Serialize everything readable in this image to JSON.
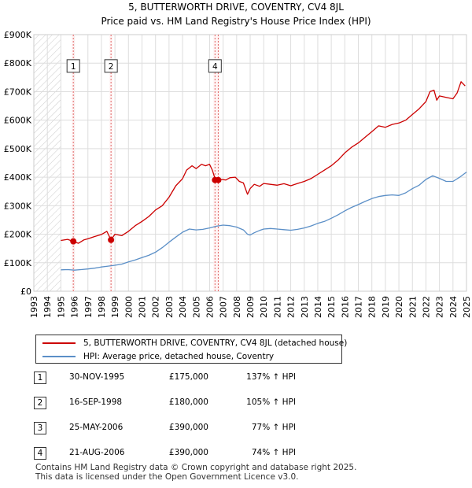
{
  "chart_data": {
    "type": "line",
    "title": "5, BUTTERWORTH DRIVE, COVENTRY, CV4 8JL",
    "subtitle": "Price paid vs. HM Land Registry's House Price Index (HPI)",
    "xlabel": "",
    "ylabel": "",
    "xlim": [
      1993,
      2025
    ],
    "ylim": [
      0,
      900000
    ],
    "grid": true,
    "hatched_periods": [
      [
        1993,
        1995
      ]
    ],
    "x_ticks": [
      "1993",
      "1994",
      "1995",
      "1996",
      "1997",
      "1998",
      "1999",
      "2000",
      "2001",
      "2002",
      "2003",
      "2004",
      "2005",
      "2006",
      "2007",
      "2008",
      "2009",
      "2010",
      "2011",
      "2012",
      "2013",
      "2014",
      "2015",
      "2016",
      "2017",
      "2018",
      "2019",
      "2020",
      "2021",
      "2022",
      "2023",
      "2024",
      "2025"
    ],
    "y_ticks": [
      {
        "value": 0,
        "label": "£0"
      },
      {
        "value": 100000,
        "label": "£100K"
      },
      {
        "value": 200000,
        "label": "£200K"
      },
      {
        "value": 300000,
        "label": "£300K"
      },
      {
        "value": 400000,
        "label": "£400K"
      },
      {
        "value": 500000,
        "label": "£500K"
      },
      {
        "value": 600000,
        "label": "£600K"
      },
      {
        "value": 700000,
        "label": "£700K"
      },
      {
        "value": 800000,
        "label": "£800K"
      },
      {
        "value": 900000,
        "label": "£900K"
      }
    ],
    "series": [
      {
        "name": "5, BUTTERWORTH DRIVE, COVENTRY, CV4 8JL (detached house)",
        "color": "#cc0000",
        "x": [
          1995.0,
          1995.5,
          1995.9,
          1996.3,
          1996.7,
          1997.0,
          1997.5,
          1998.0,
          1998.4,
          1998.71,
          1999.0,
          1999.5,
          2000.0,
          2000.5,
          2001.0,
          2001.5,
          2002.0,
          2002.5,
          2003.0,
          2003.5,
          2004.0,
          2004.3,
          2004.7,
          2005.0,
          2005.4,
          2005.7,
          2006.0,
          2006.2,
          2006.4,
          2006.64,
          2006.9,
          2007.2,
          2007.5,
          2007.9,
          2008.2,
          2008.5,
          2008.8,
          2009.0,
          2009.3,
          2009.7,
          2010.0,
          2010.5,
          2011.0,
          2011.5,
          2012.0,
          2012.5,
          2013.0,
          2013.5,
          2014.0,
          2014.5,
          2015.0,
          2015.5,
          2016.0,
          2016.5,
          2017.0,
          2017.5,
          2018.0,
          2018.5,
          2019.0,
          2019.5,
          2020.0,
          2020.5,
          2021.0,
          2021.5,
          2022.0,
          2022.3,
          2022.6,
          2022.8,
          2023.0,
          2023.5,
          2024.0,
          2024.3,
          2024.6,
          2024.9
        ],
        "values": [
          178000,
          182000,
          175000,
          168000,
          180000,
          184000,
          192000,
          199000,
          210000,
          180000,
          200000,
          195000,
          210000,
          230000,
          245000,
          262000,
          285000,
          300000,
          330000,
          370000,
          395000,
          425000,
          440000,
          430000,
          445000,
          440000,
          445000,
          425000,
          395000,
          390000,
          392000,
          390000,
          398000,
          400000,
          385000,
          380000,
          340000,
          360000,
          375000,
          368000,
          378000,
          375000,
          372000,
          377000,
          370000,
          378000,
          385000,
          395000,
          410000,
          425000,
          440000,
          460000,
          485000,
          505000,
          520000,
          540000,
          560000,
          580000,
          575000,
          585000,
          590000,
          600000,
          620000,
          640000,
          665000,
          700000,
          705000,
          670000,
          685000,
          680000,
          675000,
          695000,
          735000,
          720000
        ]
      },
      {
        "name": "HPI: Average price, detached house, Coventry",
        "color": "#5b8fc7",
        "x": [
          1995.0,
          1995.5,
          1996.0,
          1996.5,
          1997.0,
          1997.5,
          1998.0,
          1998.5,
          1999.0,
          1999.5,
          2000.0,
          2000.5,
          2001.0,
          2001.5,
          2002.0,
          2002.5,
          2003.0,
          2003.5,
          2004.0,
          2004.5,
          2005.0,
          2005.5,
          2006.0,
          2006.5,
          2007.0,
          2007.5,
          2008.0,
          2008.5,
          2008.8,
          2009.0,
          2009.3,
          2009.7,
          2010.0,
          2010.5,
          2011.0,
          2011.5,
          2012.0,
          2012.5,
          2013.0,
          2013.5,
          2014.0,
          2014.5,
          2015.0,
          2015.5,
          2016.0,
          2016.5,
          2017.0,
          2017.5,
          2018.0,
          2018.5,
          2019.0,
          2019.5,
          2020.0,
          2020.5,
          2021.0,
          2021.5,
          2022.0,
          2022.5,
          2023.0,
          2023.5,
          2024.0,
          2024.5,
          2025.0
        ],
        "values": [
          75000,
          76000,
          74000,
          76000,
          78000,
          81000,
          85000,
          88000,
          91000,
          95000,
          103000,
          110000,
          118000,
          126000,
          137000,
          153000,
          172000,
          190000,
          207000,
          218000,
          215000,
          217000,
          222000,
          228000,
          232000,
          230000,
          225000,
          215000,
          200000,
          197000,
          205000,
          213000,
          218000,
          220000,
          218000,
          216000,
          214000,
          217000,
          222000,
          229000,
          238000,
          245000,
          256000,
          268000,
          282000,
          294000,
          304000,
          315000,
          325000,
          332000,
          336000,
          338000,
          336000,
          345000,
          360000,
          372000,
          392000,
          405000,
          396000,
          385000,
          385000,
          400000,
          418000
        ]
      }
    ],
    "sales": [
      {
        "label": "1",
        "x": 1995.92,
        "value": 175000
      },
      {
        "label": "2",
        "x": 1998.71,
        "value": 180000
      },
      {
        "label": "3",
        "x": 2006.4,
        "value": 390000
      },
      {
        "label": "4",
        "x": 2006.64,
        "value": 390000
      }
    ],
    "visible_boxes": [
      {
        "label": "1",
        "x": 1995.92
      },
      {
        "label": "2",
        "x": 1998.71
      },
      {
        "label": "4",
        "x": 2006.4
      }
    ],
    "box_value": 790000
  },
  "legend": {
    "items": [
      {
        "label": "5, BUTTERWORTH DRIVE, COVENTRY, CV4 8JL (detached house)",
        "color": "#cc0000"
      },
      {
        "label": "HPI: Average price, detached house, Coventry",
        "color": "#5b8fc7"
      }
    ]
  },
  "table": {
    "rows": [
      {
        "num": "1",
        "date": "30-NOV-1995",
        "price": "£175,000",
        "hpi": "137% ↑ HPI"
      },
      {
        "num": "2",
        "date": "16-SEP-1998",
        "price": "£180,000",
        "hpi": "105% ↑ HPI"
      },
      {
        "num": "3",
        "date": "25-MAY-2006",
        "price": "£390,000",
        "hpi": "77% ↑ HPI"
      },
      {
        "num": "4",
        "date": "21-AUG-2006",
        "price": "£390,000",
        "hpi": "74% ↑ HPI"
      }
    ]
  },
  "footer": {
    "line1": "Contains HM Land Registry data © Crown copyright and database right 2025.",
    "line2": "This data is licensed under the Open Government Licence v3.0."
  }
}
